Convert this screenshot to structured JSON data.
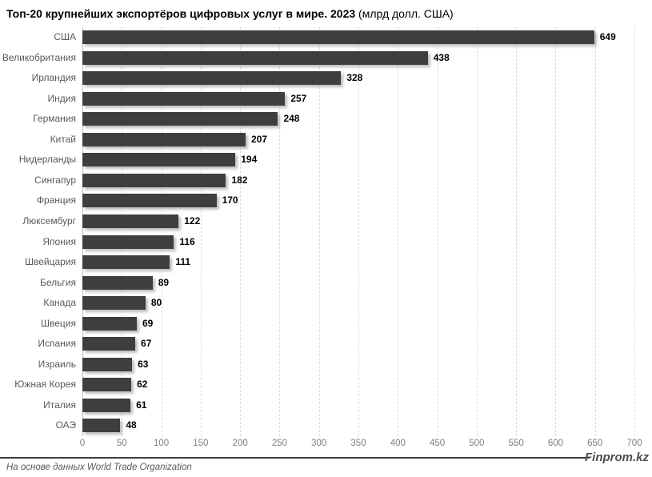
{
  "title": {
    "bold": "Топ-20 крупнейших экспортёров цифровых услуг в мире. 2023",
    "normal": " (млрд долл. США)"
  },
  "chart_data": {
    "type": "bar",
    "orientation": "horizontal",
    "title": "Топ-20 крупнейших экспортёров цифровых услуг в мире. 2023 (млрд долл. США)",
    "categories": [
      "США",
      "Великобритания",
      "Ирландия",
      "Индия",
      "Германия",
      "Китай",
      "Нидерланды",
      "Сингапур",
      "Франция",
      "Люксембург",
      "Япония",
      "Швейцария",
      "Бельгия",
      "Канада",
      "Швеция",
      "Испания",
      "Израиль",
      "Южная Корея",
      "Италия",
      "ОАЭ"
    ],
    "values": [
      649,
      438,
      328,
      257,
      248,
      207,
      194,
      182,
      170,
      122,
      116,
      111,
      89,
      80,
      69,
      67,
      63,
      62,
      61,
      48
    ],
    "xlabel": "",
    "ylabel": "",
    "xlim": [
      0,
      700
    ],
    "xticks": [
      0,
      50,
      100,
      150,
      200,
      250,
      300,
      350,
      400,
      450,
      500,
      550,
      600,
      650,
      700
    ],
    "grid": "vertical-dashed",
    "legend": "none",
    "bar_color": "#3e3e3e",
    "value_labels": "end-of-bar-bold"
  },
  "colors": {
    "bar": "#3e3e3e",
    "category_label": "#595959",
    "tick_label": "#7f7f7f",
    "gridline": "#d9d9d9",
    "axis_line": "#c3c3c3",
    "footer_line": "#3f3f3f",
    "background": "#ffffff"
  },
  "footer": {
    "source": "На основе данных World Trade Organization",
    "brand": "Finprom.kz"
  }
}
